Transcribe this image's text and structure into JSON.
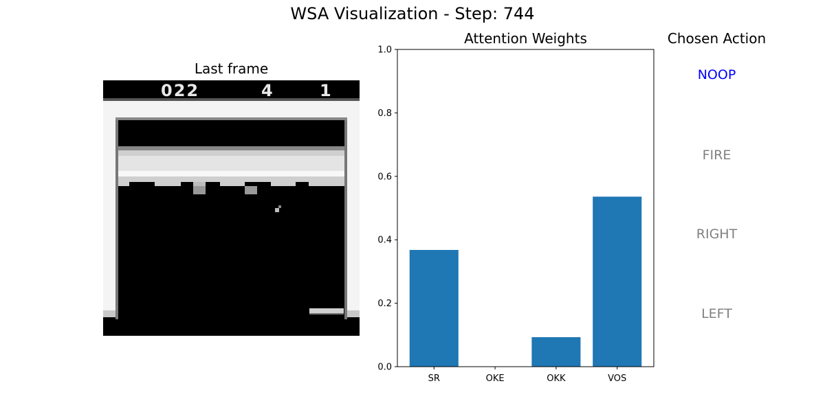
{
  "figure": {
    "suptitle": "WSA Visualization - Step: 744"
  },
  "frame_panel": {
    "title": "Last frame",
    "score": "022",
    "lives": "4",
    "level": "1"
  },
  "chart_data": {
    "type": "bar",
    "title": "Attention Weights",
    "xlabel": "",
    "ylabel": "",
    "categories": [
      "SR",
      "OKE",
      "OKK",
      "VOS"
    ],
    "values": [
      0.368,
      0.0,
      0.093,
      0.536
    ],
    "ylim": [
      0,
      1.0
    ],
    "yticks": [
      "0.0",
      "0.2",
      "0.4",
      "0.6",
      "0.8",
      "1.0"
    ],
    "bar_color": "#1f77b4",
    "grid": false
  },
  "actions_panel": {
    "title": "Chosen Action",
    "actions": [
      {
        "label": "NOOP",
        "color": "#0000ff"
      },
      {
        "label": "FIRE",
        "color": "#808080"
      },
      {
        "label": "RIGHT",
        "color": "#808080"
      },
      {
        "label": "LEFT",
        "color": "#808080"
      }
    ]
  }
}
